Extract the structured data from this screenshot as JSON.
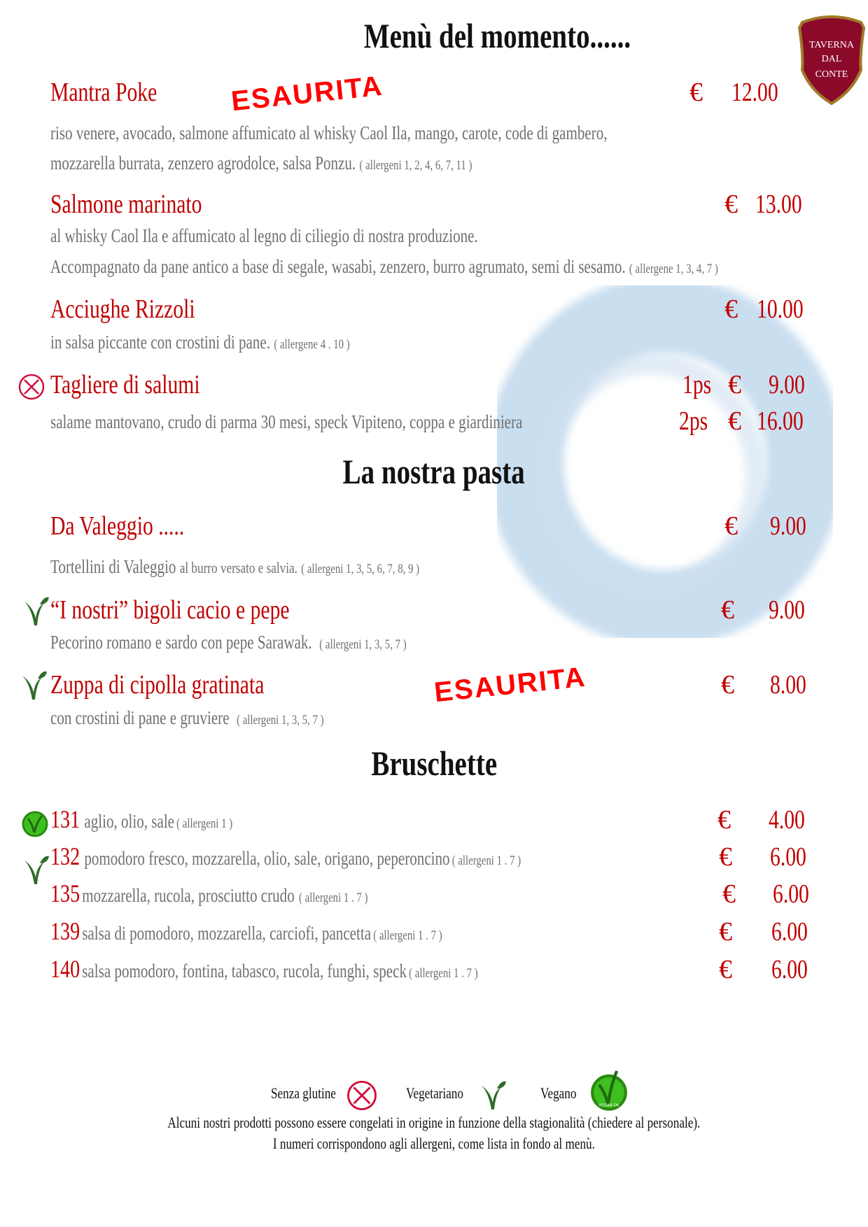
{
  "title": "Menù del momento......",
  "logo": {
    "text": "TAVERNA DAL CONTE",
    "color": "#8b0a2a"
  },
  "colors": {
    "accent": "#c00000",
    "description": "#707070",
    "stamp": "#ff0000",
    "watercolor": "#b8d3ea"
  },
  "sections": [
    {
      "heading": "Menù del momento......"
    },
    {
      "heading": "La nostra pasta"
    },
    {
      "heading": "Bruschette"
    }
  ],
  "antipasti": [
    {
      "name": "Mantra Poke",
      "currency": "€",
      "price": "12.00",
      "stamp": "ESAURITA",
      "desc1": "riso venere, avocado, salmone affumicato al whisky Caol Ila, mango, carote, code di gambero,",
      "desc2": "mozzarella burrata, zenzero agrodolce, salsa Ponzu.",
      "allergens": "( allergeni  1, 2, 4, 6, 7, 11 )"
    },
    {
      "name": "Salmone marinato",
      "currency": "€",
      "price": "13.00",
      "desc1": "al whisky Caol Ila e affumicato al legno di ciliegio di nostra produzione.",
      "desc2": "Accompagnato da pane antico a base di segale, wasabi, zenzero, burro agrumato, semi di sesamo.",
      "allergens": "( allergene 1, 3, 4, 7 )"
    },
    {
      "name": "Acciughe Rizzoli",
      "currency": "€",
      "price": "10.00",
      "desc1": "in salsa piccante con crostini di pane.",
      "allergens": "( allergene 4 . 10 )"
    },
    {
      "name": "Tagliere di salumi",
      "icon": "gluten-free-icon",
      "portion1": "1ps",
      "currency": "€",
      "price1": "9.00",
      "desc1": "salame mantovano, crudo di parma 30 mesi, speck Vipiteno, coppa e giardiniera",
      "portion2": "2ps",
      "price2": "16.00"
    }
  ],
  "pasta": [
    {
      "name": "Da Valeggio .....",
      "currency": "€",
      "price": "9.00",
      "desc1": "Tortellini di Valeggio",
      "desc1b": "al burro versato e salvia.",
      "allergens": "( allergeni 1, 3, 5, 6, 7, 8, 9 )"
    },
    {
      "name": "“I nostri” bigoli cacio e pepe",
      "icon": "vegetarian-icon",
      "currency": "€",
      "price": "9.00",
      "desc1": "Pecorino romano e sardo con pepe Sarawak.",
      "allergens": "( allergeni 1, 3, 5, 7 )"
    },
    {
      "name": "Zuppa di cipolla gratinata",
      "icon": "vegetarian-icon",
      "currency": "€",
      "price": "8.00",
      "stamp": "ESAURITA",
      "desc1": "con crostini di pane e gruviere",
      "allergens": "( allergeni 1, 3, 5, 7 )"
    }
  ],
  "bruschette": [
    {
      "num": "131",
      "desc": "aglio, olio, sale",
      "allergens": "( allergeni 1 )",
      "currency": "€",
      "price": "4.00",
      "icon": "vegan-icon"
    },
    {
      "num": "132",
      "desc": "pomodoro fresco, mozzarella, olio, sale, origano, peperoncino",
      "allergens": "( allergeni 1 . 7 )",
      "currency": "€",
      "price": "6.00",
      "icon": "vegetarian-icon"
    },
    {
      "num": "135",
      "desc": "mozzarella, rucola, prosciutto crudo",
      "allergens": "( allergeni 1 . 7 )",
      "currency": "€",
      "price": "6.00"
    },
    {
      "num": "139",
      "desc": "salsa di pomodoro, mozzarella, carciofi, pancetta",
      "allergens": "( allergeni 1 . 7 )",
      "currency": "€",
      "price": "6.00"
    },
    {
      "num": "140",
      "desc": "salsa pomodoro, fontina, tabasco, rucola, funghi, speck",
      "allergens": "( allergeni 1 . 7 )",
      "currency": "€",
      "price": "6.00"
    }
  ],
  "legend": {
    "gluten_free": "Senza glutine",
    "vegetarian": "Vegetariano",
    "vegan": "Vegano",
    "vegan_badge": "VEGAN OK"
  },
  "footer": {
    "line1": "Alcuni nostri prodotti possono essere congelati in origine in funzione della stagionalità (chiedere al personale).",
    "line2": "I numeri corrispondono agli allergeni, come lista in fondo al menù."
  }
}
